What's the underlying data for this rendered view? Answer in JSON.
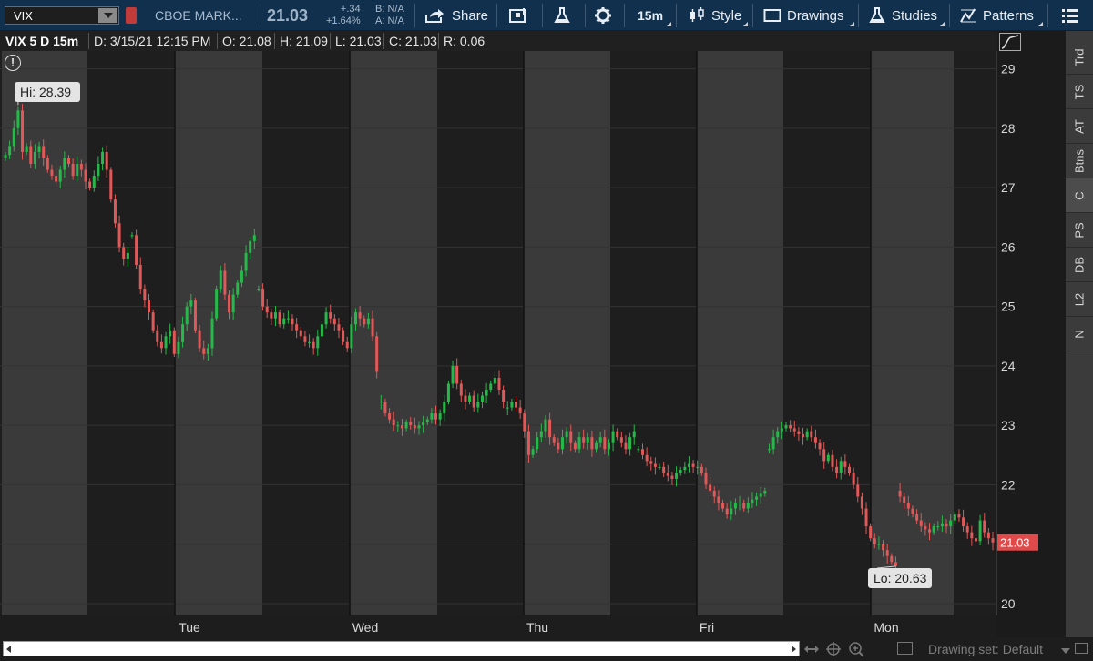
{
  "toolbar": {
    "symbol": "VIX",
    "description": "CBOE MARK...",
    "last_price": "21.03",
    "change_net": "+.34",
    "change_pct": "+1.64%",
    "bid": "B: N/A",
    "ask": "A: N/A",
    "share_label": "Share",
    "timeframe_label": "15m",
    "style_label": "Style",
    "drawings_label": "Drawings",
    "studies_label": "Studies",
    "patterns_label": "Patterns"
  },
  "infobar": {
    "title": "VIX 5 D 15m",
    "date": "D: 3/15/21 12:15 PM",
    "open": "O: 21.08",
    "high": "H: 21.09",
    "low": "L: 21.03",
    "close": "C: 21.03",
    "range": "R: 0.06"
  },
  "right_panel": {
    "tabs": [
      "Trd",
      "TS",
      "AT",
      "Btns",
      "C",
      "PS",
      "DB",
      "L2",
      "N"
    ],
    "active_tab": "C"
  },
  "bottombar": {
    "drawing_set": "Drawing set: Default"
  },
  "colors": {
    "up": "#27b84a",
    "down": "#e05858",
    "price_tag": "#e04a4a",
    "session_light": "#3a3a3a",
    "session_dark": "#1e1e1e",
    "toolbar": "#10304d"
  },
  "chart_data": {
    "type": "candlestick",
    "symbol": "VIX",
    "interval": "15m",
    "ylim": [
      19.8,
      29.3
    ],
    "yticks": [
      20,
      21,
      22,
      23,
      24,
      25,
      26,
      27,
      28,
      29
    ],
    "xticks": [
      "Tue",
      "Wed",
      "Thu",
      "Fri",
      "Mon"
    ],
    "day_boundaries": [
      0,
      1,
      2,
      3,
      4,
      5
    ],
    "annotations": {
      "high": "Hi: 28.39",
      "low": "Lo: 20.63"
    },
    "last_price_label": "21.03",
    "closes": [
      27.55,
      27.7,
      28.0,
      28.3,
      27.6,
      27.7,
      27.4,
      27.6,
      27.7,
      27.5,
      27.3,
      27.2,
      27.1,
      27.3,
      27.5,
      27.4,
      27.2,
      27.4,
      27.3,
      27.1,
      27.0,
      27.2,
      27.4,
      27.6,
      27.3,
      26.8,
      26.4,
      26.0,
      25.8,
      25.9,
      26.2,
      25.7,
      25.3,
      25.1,
      24.9,
      24.6,
      24.4,
      24.3,
      24.5,
      24.6,
      24.2,
      24.4,
      24.7,
      25.0,
      25.1,
      24.6,
      24.3,
      24.2,
      24.3,
      24.8,
      25.3,
      25.6,
      25.2,
      24.9,
      25.2,
      25.4,
      25.6,
      25.9,
      26.1,
      26.2,
      25.3,
      25.0,
      24.9,
      24.8,
      24.9,
      24.7,
      24.8,
      24.8,
      24.7,
      24.6,
      24.5,
      24.4,
      24.4,
      24.3,
      24.5,
      24.7,
      24.9,
      24.8,
      24.7,
      24.6,
      24.4,
      24.3,
      24.7,
      24.9,
      24.8,
      24.7,
      24.8,
      24.5,
      23.9,
      23.4,
      23.2,
      23.1,
      23.0,
      23.0,
      22.95,
      23.05,
      23.0,
      22.95,
      23.0,
      23.05,
      23.1,
      23.2,
      23.1,
      23.2,
      23.4,
      23.7,
      24.0,
      23.7,
      23.5,
      23.4,
      23.5,
      23.3,
      23.4,
      23.5,
      23.6,
      23.7,
      23.8,
      23.6,
      23.4,
      23.3,
      23.4,
      23.3,
      23.2,
      22.9,
      22.5,
      22.6,
      22.8,
      22.9,
      23.1,
      22.8,
      22.7,
      22.6,
      22.8,
      22.9,
      22.7,
      22.6,
      22.8,
      22.7,
      22.8,
      22.6,
      22.7,
      22.8,
      22.6,
      22.7,
      22.9,
      22.8,
      22.7,
      22.6,
      22.8,
      22.9,
      22.6,
      22.5,
      22.4,
      22.35,
      22.3,
      22.3,
      22.2,
      22.15,
      22.1,
      22.2,
      22.25,
      22.3,
      22.35,
      22.3,
      22.3,
      22.2,
      22.0,
      21.9,
      21.8,
      21.7,
      21.6,
      21.5,
      21.6,
      21.7,
      21.7,
      21.6,
      21.7,
      21.75,
      21.8,
      21.85,
      21.9,
      22.6,
      22.8,
      22.9,
      22.95,
      23.0,
      22.95,
      22.9,
      22.85,
      22.8,
      22.9,
      22.8,
      22.7,
      22.6,
      22.4,
      22.5,
      22.3,
      22.2,
      22.4,
      22.3,
      22.2,
      22.0,
      21.8,
      21.6,
      21.3,
      21.1,
      21.0,
      21.0,
      20.9,
      20.8,
      20.7,
      20.63,
      21.8,
      21.7,
      21.6,
      21.5,
      21.4,
      21.3,
      21.25,
      21.2,
      21.3,
      21.3,
      21.35,
      21.3,
      21.4,
      21.5,
      21.45,
      21.3,
      21.2,
      21.1,
      21.05,
      21.4,
      21.2,
      21.1,
      21.03
    ]
  }
}
